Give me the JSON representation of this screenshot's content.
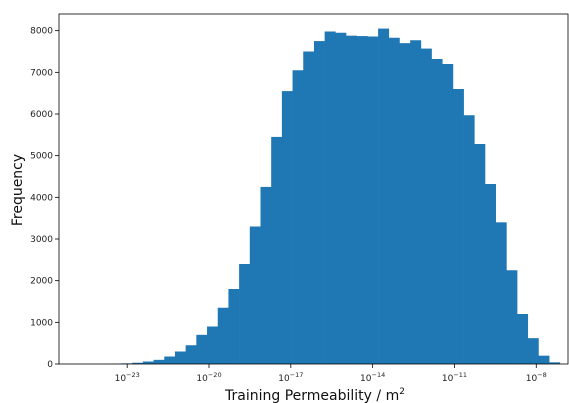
{
  "chart_data": {
    "type": "bar",
    "xlabel": "Training Permeability / m",
    "xlabel_superscript": "2",
    "ylabel": "Frequency",
    "x_scale": "log",
    "xlim": [
      -25.5,
      -6.8
    ],
    "ylim": [
      0,
      8400
    ],
    "bar_color": "#1f77b4",
    "grid": false,
    "y_ticks": [
      0,
      1000,
      2000,
      3000,
      4000,
      5000,
      6000,
      7000,
      8000
    ],
    "x_ticks": [
      {
        "base": "10",
        "exp": "−23",
        "value": -23
      },
      {
        "base": "10",
        "exp": "−20",
        "value": -20
      },
      {
        "base": "10",
        "exp": "−17",
        "value": -17
      },
      {
        "base": "10",
        "exp": "−14",
        "value": -14
      },
      {
        "base": "10",
        "exp": "−11",
        "value": -11
      },
      {
        "base": "10",
        "exp": "−8",
        "value": -8
      }
    ],
    "bins": {
      "start": -23.6,
      "width": 0.392,
      "values": [
        5,
        15,
        30,
        60,
        100,
        180,
        300,
        450,
        700,
        900,
        1350,
        1800,
        2400,
        3300,
        4250,
        5450,
        6550,
        7050,
        7500,
        7750,
        7980,
        7950,
        7880,
        7870,
        7860,
        8050,
        7830,
        7700,
        7770,
        7570,
        7320,
        7200,
        6600,
        5970,
        5280,
        4320,
        3400,
        2250,
        1200,
        620,
        200,
        40
      ]
    }
  }
}
